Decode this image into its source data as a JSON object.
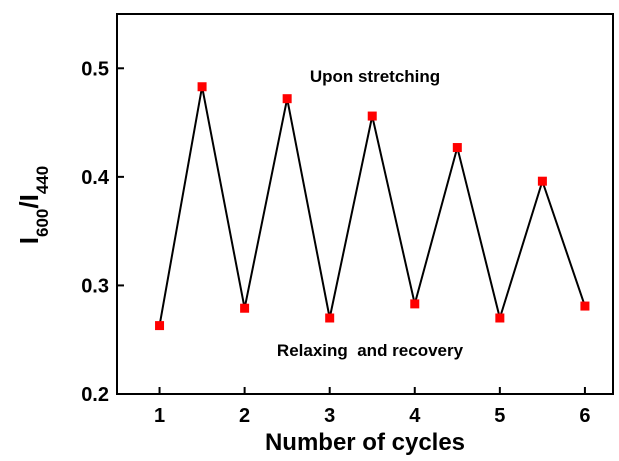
{
  "chart_data": {
    "type": "line",
    "xlabel": "Number of cycles",
    "ylabel": {
      "segments": [
        "I",
        "600",
        "/I",
        "440"
      ],
      "subscript": [
        false,
        true,
        false,
        true
      ]
    },
    "annotations": [
      "Upon stretching",
      "Relaxing  and recovery"
    ],
    "x": [
      1,
      1.5,
      2,
      2.5,
      3,
      3.5,
      4,
      4.5,
      5,
      5.5,
      6
    ],
    "series": [
      {
        "name": "I600/I440",
        "color": "#000000",
        "marker_color": "#ff0000",
        "values": [
          0.263,
          0.483,
          0.279,
          0.472,
          0.27,
          0.456,
          0.283,
          0.427,
          0.27,
          0.396,
          0.281
        ]
      }
    ],
    "xlim": [
      0.5,
      6.33
    ],
    "ylim": [
      0.2,
      0.55
    ],
    "xticks": [
      1,
      2,
      3,
      4,
      5,
      6
    ],
    "yticks": [
      0.2,
      0.3,
      0.4,
      0.5
    ]
  }
}
